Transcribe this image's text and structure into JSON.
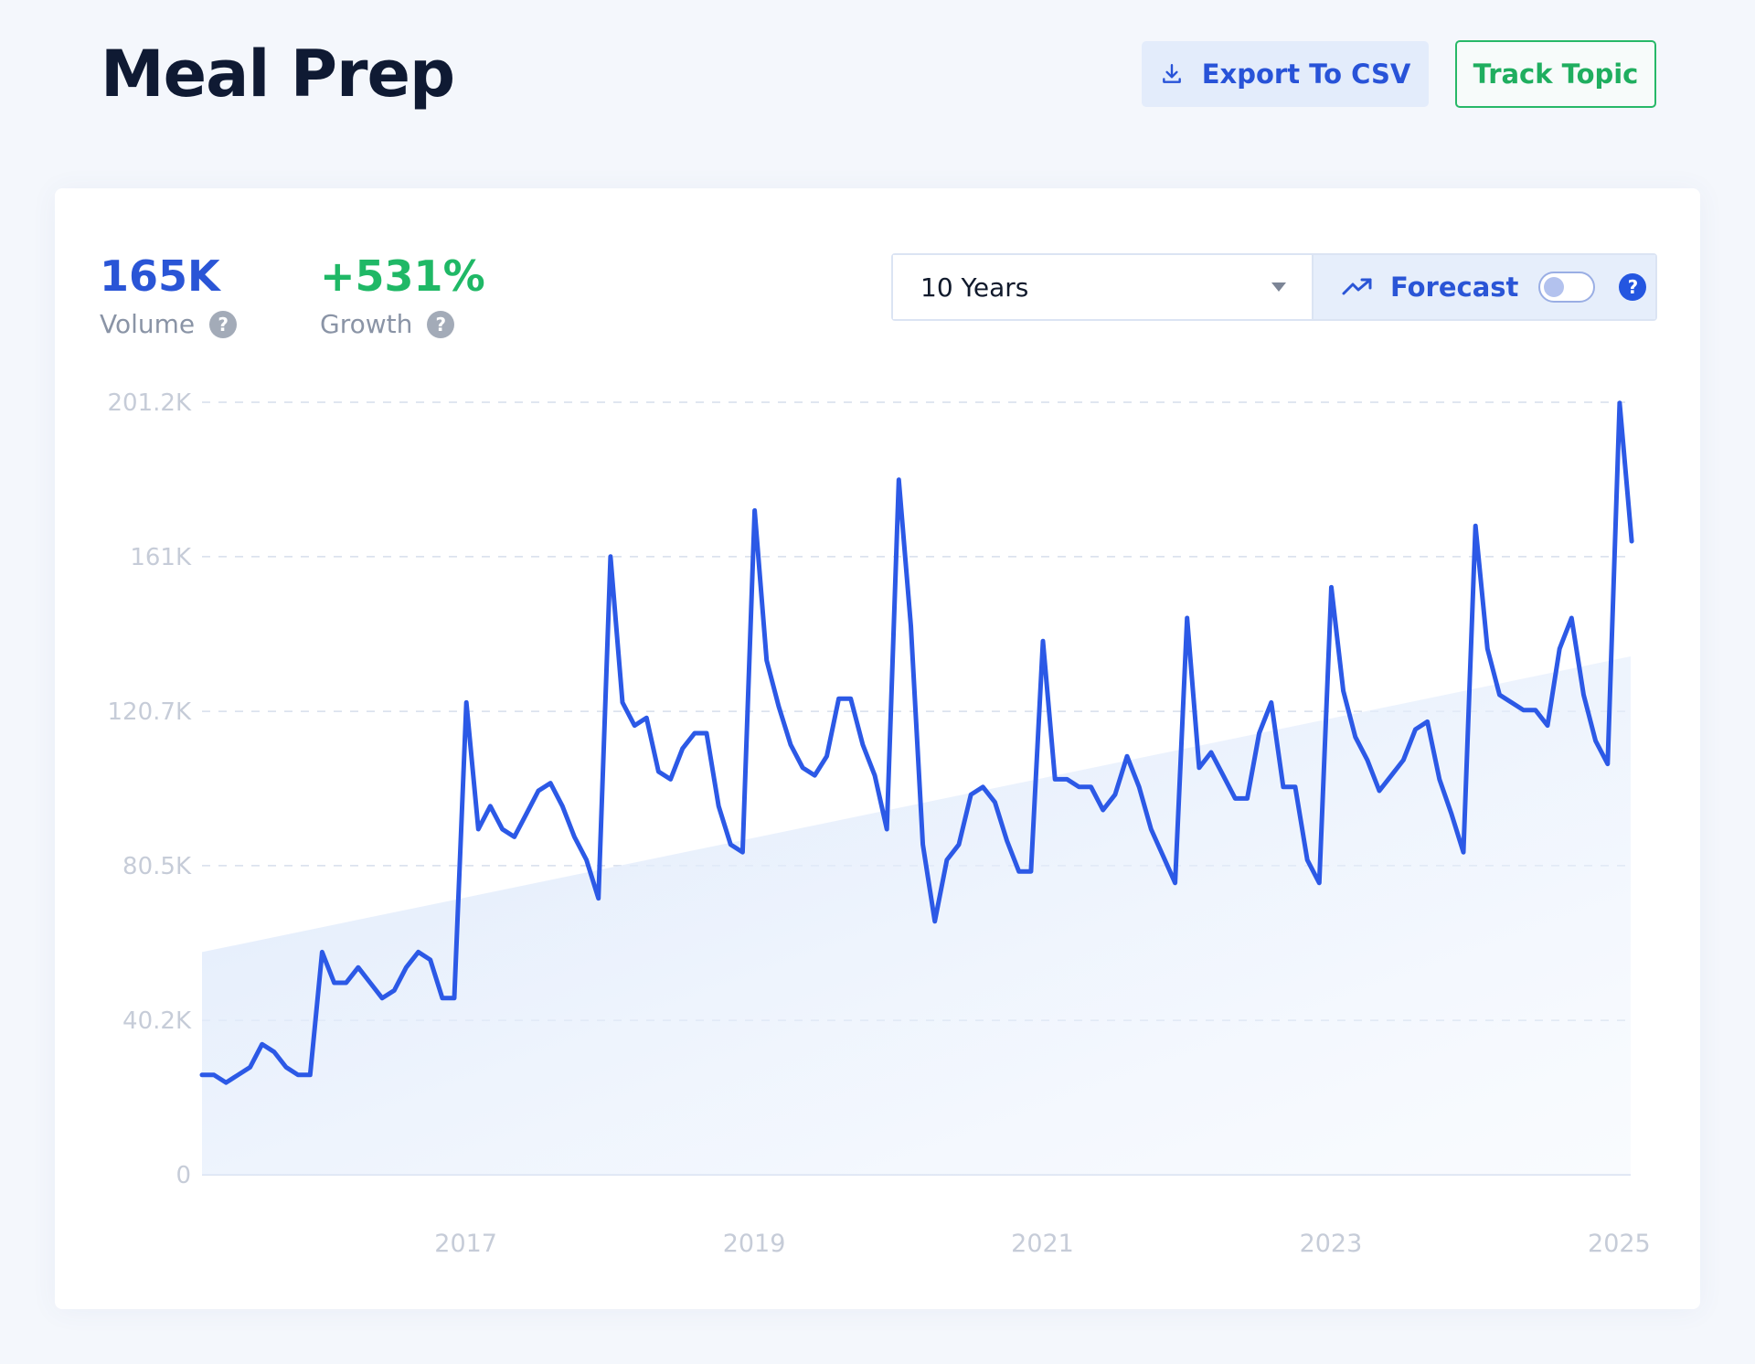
{
  "header": {
    "title": "Meal Prep",
    "export_label": "Export To CSV",
    "track_label": "Track Topic"
  },
  "metrics": {
    "volume_value": "165K",
    "volume_label": "Volume",
    "growth_value": "+531%",
    "growth_label": "Growth",
    "help_glyph": "?"
  },
  "controls": {
    "range_value": "10 Years",
    "forecast_label": "Forecast",
    "forecast_enabled": false
  },
  "colors": {
    "line": "#2c59e6",
    "volume": "#2a55d6",
    "growth": "#1fb866",
    "trend_area": "#dce8fb"
  },
  "icons": [
    "download-icon",
    "trending-up-icon",
    "help-icon",
    "dropdown-caret-icon"
  ],
  "chart_data": {
    "type": "line",
    "title": "",
    "xlabel": "",
    "ylabel": "",
    "ylim": [
      0,
      201200
    ],
    "yticks": [
      0,
      40200,
      80500,
      120700,
      161000,
      201200
    ],
    "ytick_labels": [
      "0",
      "40.2K",
      "80.5K",
      "120.7K",
      "161K",
      "201.2K"
    ],
    "xticks": [
      2017,
      2019,
      2021,
      2023,
      2025
    ],
    "xtick_labels": [
      "2017",
      "2019",
      "2021",
      "2023",
      "2025"
    ],
    "xlim": [
      2015.17,
      2025.08
    ],
    "grid": "horizontal dashed",
    "series": [
      {
        "x_start": 2015.17,
        "x_step_months": 1,
        "values": [
          26000,
          26000,
          24000,
          26000,
          28000,
          34000,
          32000,
          28000,
          26000,
          26000,
          58000,
          50000,
          50000,
          54000,
          50000,
          46000,
          48000,
          54000,
          58000,
          56000,
          46000,
          46000,
          123000,
          90000,
          96000,
          90000,
          88000,
          94000,
          100000,
          102000,
          96000,
          88000,
          82000,
          72000,
          161000,
          123000,
          117000,
          119000,
          105000,
          103000,
          111000,
          115000,
          115000,
          96000,
          86000,
          84000,
          173000,
          134000,
          122000,
          112000,
          106000,
          104000,
          109000,
          124000,
          124000,
          112000,
          104000,
          90000,
          181000,
          143000,
          86000,
          66000,
          82000,
          86000,
          99000,
          101000,
          97000,
          87000,
          79000,
          79000,
          139000,
          103000,
          103000,
          101000,
          101000,
          95000,
          99000,
          109000,
          101000,
          90000,
          83000,
          76000,
          145000,
          106000,
          110000,
          104000,
          98000,
          98000,
          115000,
          123000,
          101000,
          101000,
          82000,
          76000,
          153000,
          126000,
          114000,
          108000,
          100000,
          104000,
          108000,
          116000,
          118000,
          103000,
          94000,
          84000,
          169000,
          137000,
          125000,
          123000,
          121000,
          121000,
          117000,
          137000,
          145000,
          125000,
          113000,
          107000,
          201000,
          165000
        ]
      }
    ],
    "trend_area": {
      "x": [
        2015.17,
        2025.08
      ],
      "values": [
        58000,
        135000
      ]
    }
  }
}
